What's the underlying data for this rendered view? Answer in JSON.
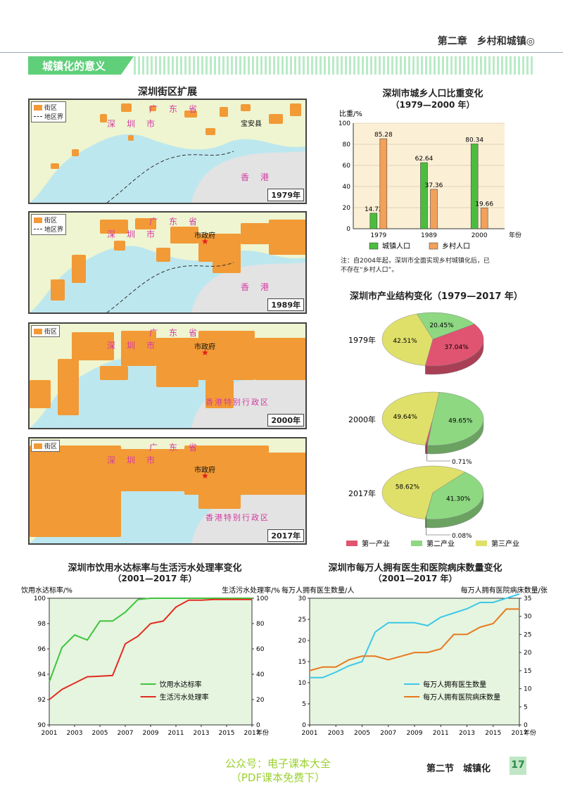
{
  "header": {
    "chapter": "第二章　乡村和城镇◎",
    "section": "城镇化的意义"
  },
  "map": {
    "title": "深圳街区扩展",
    "legend_street": "街区",
    "legend_boundary": "地区界",
    "labels": {
      "guangdong": "广　东　省",
      "shenzhen": "深　圳　市",
      "baoan": "宝安县",
      "hongkong": "香　港",
      "hksar": "香港特别行政区",
      "govt": "市政府"
    },
    "colors": {
      "street": "#f29a36",
      "water": "#bde7ee",
      "land": "#eef5d0",
      "hk_land": "#e3e3e3"
    },
    "panels": [
      {
        "year": "1979年",
        "show_boundary_legend": true,
        "show_govt": false
      },
      {
        "year": "1989年",
        "show_boundary_legend": true,
        "show_govt": true
      },
      {
        "year": "2000年",
        "show_boundary_legend": false,
        "show_govt": true
      },
      {
        "year": "2017年",
        "show_boundary_legend": false,
        "show_govt": true
      }
    ]
  },
  "chart_data": [
    {
      "type": "bar",
      "title": "深圳市城乡人口比重变化",
      "subtitle": "（1979—2000 年）",
      "ylabel": "比重/%",
      "xlabel": "年份",
      "categories": [
        "1979",
        "1989",
        "2000"
      ],
      "ylim": [
        0,
        100
      ],
      "yticks": [
        0,
        20,
        40,
        60,
        80,
        100
      ],
      "series": [
        {
          "name": "城镇人口",
          "values": [
            14.72,
            62.64,
            80.34
          ],
          "labels": [
            "14.72",
            "62.64",
            "80.34"
          ],
          "color": "#4cbc3f"
        },
        {
          "name": "乡村人口",
          "values": [
            85.28,
            37.36,
            19.66
          ],
          "labels": [
            "85.28",
            "37.36",
            "19.66"
          ],
          "color": "#f2a15a"
        }
      ],
      "note": [
        "注：自2004年起，深圳市全面实现乡村城镇化后，已",
        "不存在“乡村人口”。"
      ]
    },
    {
      "type": "pie",
      "title": "深圳市产业结构变化（1979—2017 年）",
      "legend": [
        "第一产业",
        "第二产业",
        "第三产业"
      ],
      "colors": [
        "#e05471",
        "#8ed882",
        "#dfe06a"
      ],
      "pies": [
        {
          "year": "1979年",
          "values": [
            37.04,
            20.45,
            42.51
          ],
          "labels": [
            "37.04%",
            "20.45%",
            "42.51%"
          ]
        },
        {
          "year": "2000年",
          "values": [
            0.71,
            49.65,
            49.64
          ],
          "labels": [
            "0.71%",
            "49.65%",
            "49.64%"
          ]
        },
        {
          "year": "2017年",
          "values": [
            0.08,
            41.3,
            58.62
          ],
          "labels": [
            "0.08%",
            "41.30%",
            "58.62%"
          ]
        }
      ]
    },
    {
      "type": "line",
      "title": "深圳市饮用水达标率与生活污水处理率变化",
      "subtitle": "（2001—2017 年）",
      "ylabel_left": "饮用水达标率/%",
      "ylabel_right": "生活污水处理率/%",
      "xlabel": "年份",
      "x": [
        2001,
        2002,
        2003,
        2004,
        2005,
        2006,
        2007,
        2008,
        2009,
        2010,
        2011,
        2012,
        2013,
        2014,
        2015,
        2016,
        2017
      ],
      "xticks": [
        "2001",
        "2003",
        "2005",
        "2007",
        "2009",
        "2011",
        "2013",
        "2015",
        "2017"
      ],
      "ylim_left": [
        90,
        100
      ],
      "yticks_left": [
        90,
        92,
        94,
        96,
        98,
        100
      ],
      "ylim_right": [
        0,
        100
      ],
      "yticks_right": [
        0,
        20,
        40,
        60,
        80,
        100
      ],
      "series": [
        {
          "name": "饮用水达标率",
          "axis": "left",
          "color": "#3ec43e",
          "values": [
            93.4,
            96.1,
            97.1,
            96.7,
            98.2,
            98.2,
            98.9,
            99.9,
            100,
            100,
            100,
            100,
            100,
            100,
            100,
            100,
            100
          ]
        },
        {
          "name": "生活污水处理率",
          "axis": "right",
          "color": "#e32b21",
          "values": [
            20,
            28,
            33,
            38,
            38.5,
            39,
            64,
            70,
            80,
            82,
            93,
            98.5,
            98.5,
            99,
            99,
            99,
            99
          ]
        }
      ]
    },
    {
      "type": "line",
      "title": "深圳市每万人拥有医生和医院病床数量变化",
      "subtitle": "（2001—2017 年）",
      "ylabel_left": "每万人拥有医生数量/人",
      "ylabel_right": "每万人拥有医院病床数量/张",
      "xlabel": "年份",
      "x": [
        2001,
        2002,
        2003,
        2004,
        2005,
        2006,
        2007,
        2008,
        2009,
        2010,
        2011,
        2012,
        2013,
        2014,
        2015,
        2016,
        2017
      ],
      "xticks": [
        "2001",
        "2003",
        "2005",
        "2007",
        "2009",
        "2011",
        "2013",
        "2015",
        "2017"
      ],
      "ylim_left": [
        0,
        30
      ],
      "yticks_left": [
        0,
        5,
        10,
        15,
        20,
        25,
        30
      ],
      "ylim_right": [
        0,
        35
      ],
      "yticks_right": [
        0,
        5,
        10,
        15,
        20,
        25,
        30,
        35
      ],
      "series": [
        {
          "name": "每万人拥有医生数量",
          "axis": "left",
          "color": "#3cc8e8",
          "values": [
            11.2,
            11.2,
            12.5,
            14,
            15,
            22,
            24.2,
            24.2,
            24.2,
            23.5,
            25.5,
            26.5,
            27.5,
            29,
            29,
            30,
            31
          ]
        },
        {
          "name": "每万人拥有医院病床数量",
          "axis": "right",
          "color": "#e8781e",
          "values": [
            15,
            16,
            16,
            18,
            19,
            19,
            18,
            19,
            20,
            20,
            21,
            25,
            25,
            27,
            28,
            32,
            32
          ]
        }
      ]
    }
  ],
  "footer": {
    "watermark1": "公众号：电子课本大全",
    "watermark2": "（PDF课本免费下）",
    "section": "第二节　城镇化",
    "page": "17"
  }
}
